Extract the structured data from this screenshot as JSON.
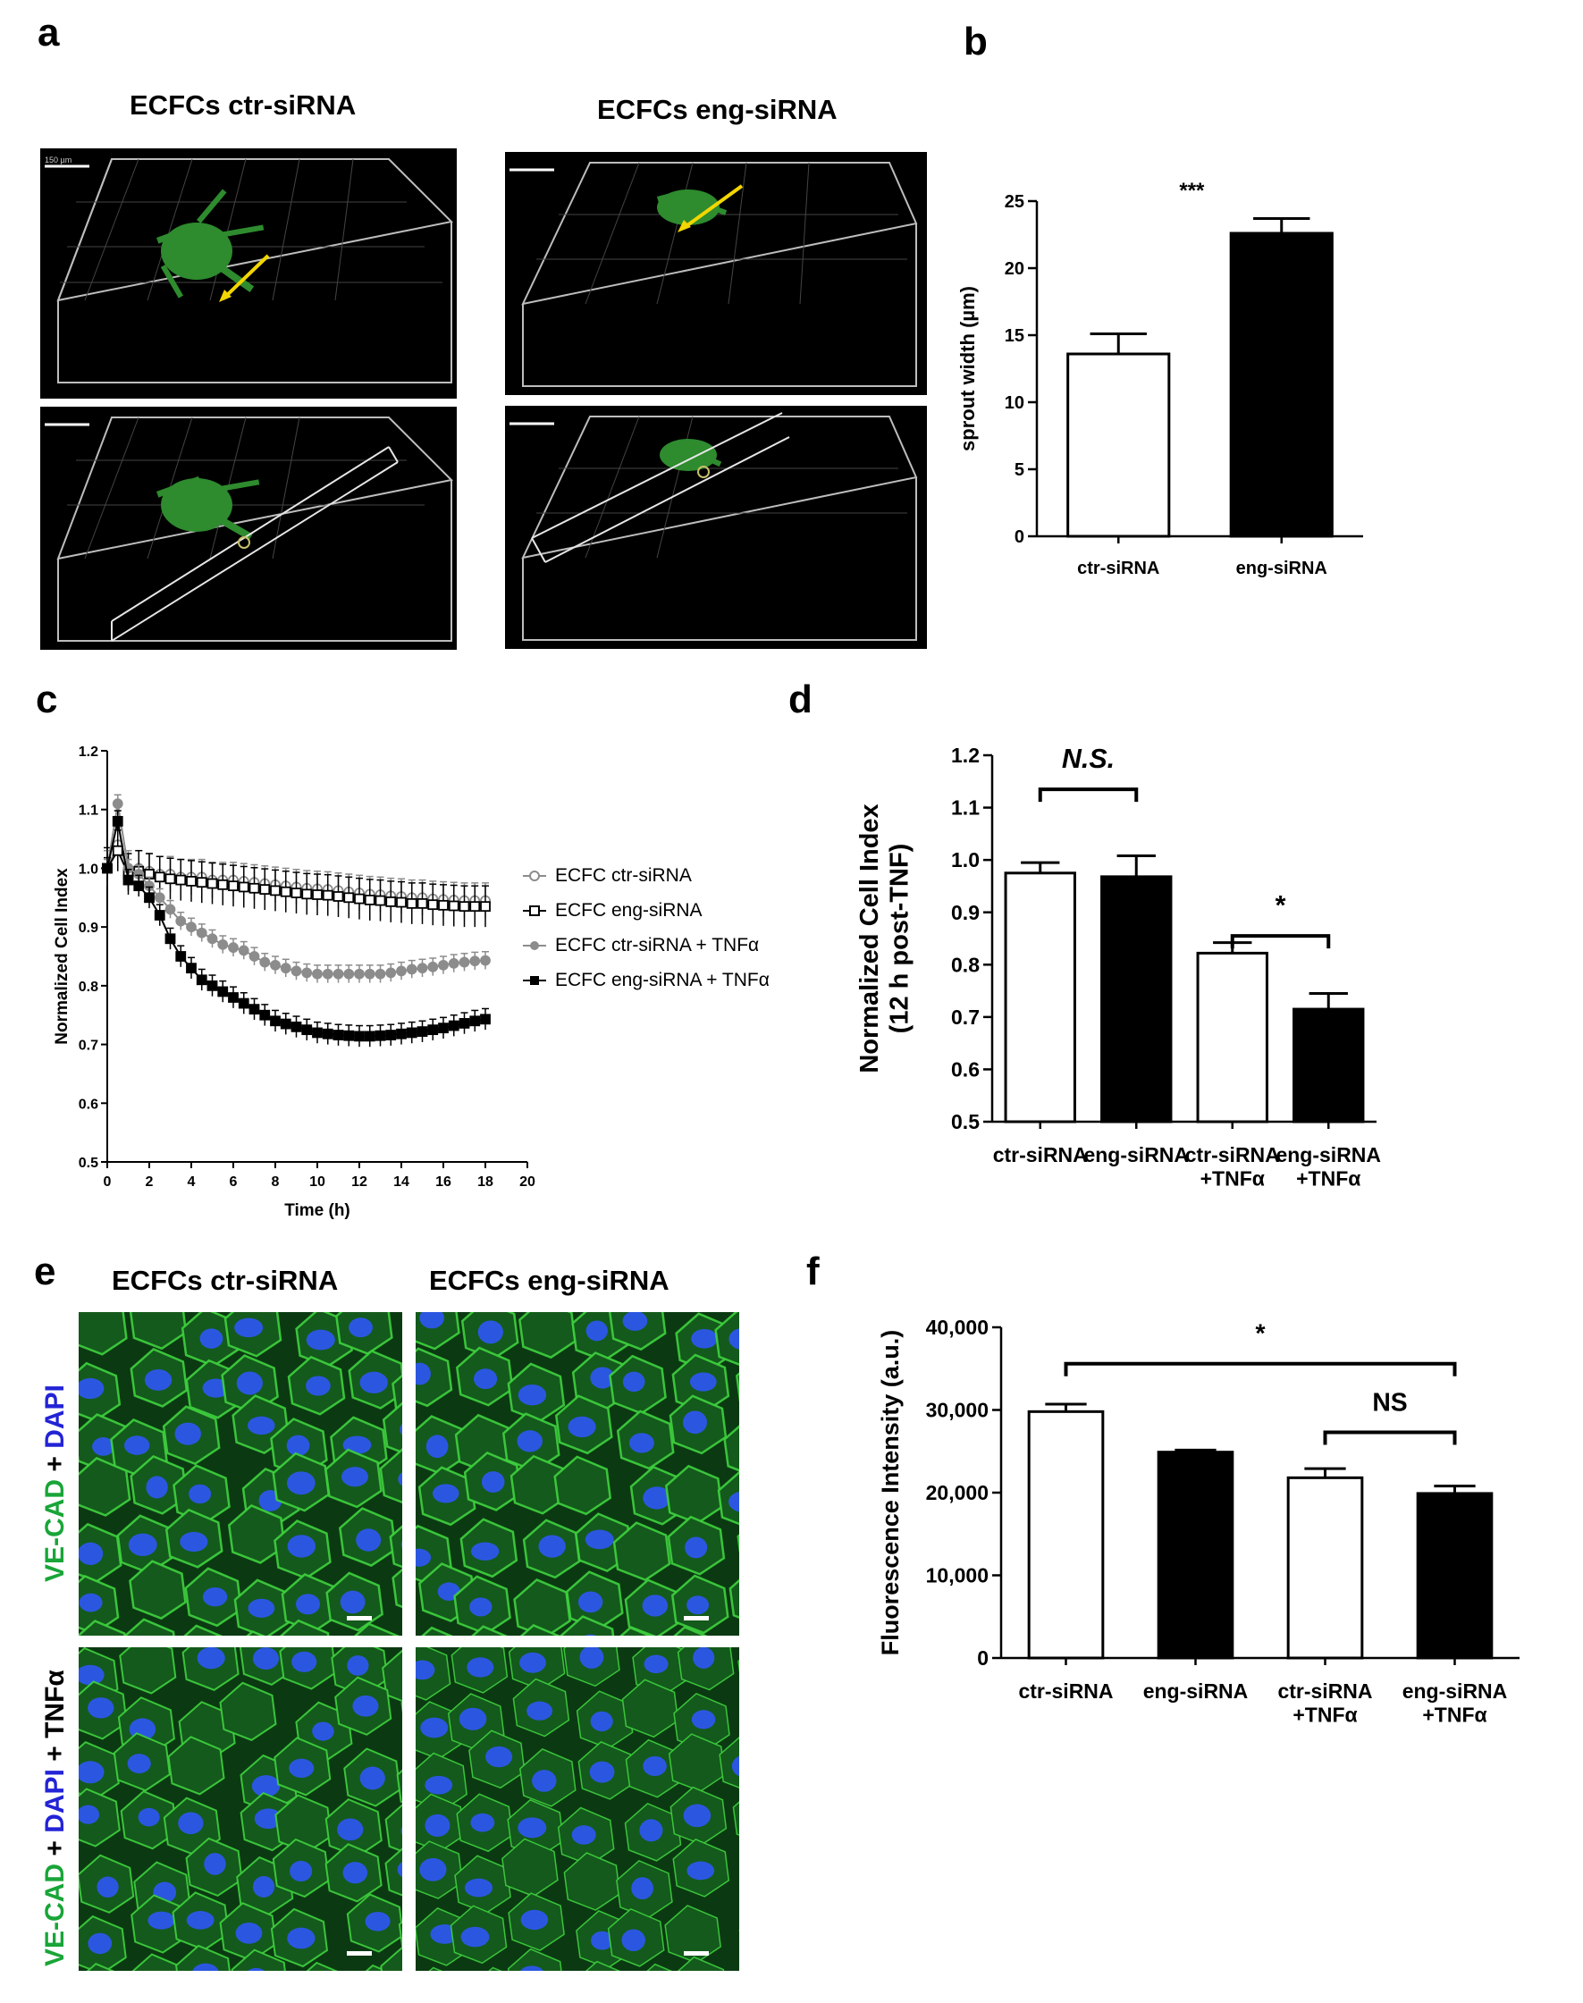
{
  "panels": [
    "a",
    "b",
    "c",
    "d",
    "e",
    "f"
  ],
  "panel_a": {
    "titles": [
      "ECFCs ctr-siRNA",
      "ECFCs eng-siRNA"
    ],
    "scale_bar": "150 µm"
  },
  "panel_e": {
    "titles": [
      "ECFCs ctr-siRNA",
      "ECFCs eng-siRNA"
    ],
    "row_labels": [
      {
        "parts": [
          "VE-CAD",
          " + ",
          "DAPI"
        ]
      },
      {
        "parts": [
          "VE-CAD",
          " + ",
          "DAPI",
          " + TNFα"
        ]
      }
    ],
    "stain_colors": {
      "ve_cad": "#19a538",
      "dapi": "#2323d6"
    }
  },
  "chart_data": [
    {
      "id": "b",
      "type": "bar",
      "categories": [
        "ctr-siRNA",
        "eng-siRNA"
      ],
      "values": [
        13.6,
        22.6
      ],
      "errors": [
        1.5,
        1.1
      ],
      "fills": [
        "#ffffff",
        "#000000"
      ],
      "ylabel": "sprout width (µm)",
      "ylim": [
        0,
        25
      ],
      "yticks": [
        0,
        5,
        10,
        15,
        20,
        25
      ],
      "annotations": [
        {
          "text": "***",
          "over": 1
        }
      ]
    },
    {
      "id": "c",
      "type": "line",
      "xlabel": "Time (h)",
      "ylabel": "Normalized Cell Index",
      "xlim": [
        0,
        20
      ],
      "ylim": [
        0.5,
        1.2
      ],
      "xticks": [
        0,
        2,
        4,
        6,
        8,
        10,
        12,
        14,
        16,
        18,
        20
      ],
      "yticks": [
        0.5,
        0.6,
        0.7,
        0.8,
        0.9,
        1.0,
        1.1,
        1.2
      ],
      "ytick_labels": [
        "0.5",
        "0.6",
        "0.7",
        "0.8",
        "0.9",
        "1.0",
        "1.1",
        "1.2"
      ],
      "x": [
        0,
        0.5,
        1,
        1.5,
        2,
        2.5,
        3,
        3.5,
        4,
        4.5,
        5,
        5.5,
        6,
        6.5,
        7,
        7.5,
        8,
        8.5,
        9,
        9.5,
        10,
        10.5,
        11,
        11.5,
        12,
        12.5,
        13,
        13.5,
        14,
        14.5,
        15,
        15.5,
        16,
        16.5,
        17,
        17.5,
        18
      ],
      "legend_position": "right",
      "series": [
        {
          "name": "ECFC ctr-siRNA",
          "color": "#8c8c8c",
          "marker": "circle-open",
          "values": [
            1.0,
            1.04,
            1.0,
            1.0,
            0.995,
            0.99,
            0.99,
            0.985,
            0.985,
            0.985,
            0.98,
            0.98,
            0.98,
            0.978,
            0.976,
            0.974,
            0.972,
            0.97,
            0.968,
            0.966,
            0.965,
            0.964,
            0.962,
            0.96,
            0.958,
            0.956,
            0.955,
            0.953,
            0.952,
            0.95,
            0.95,
            0.948,
            0.947,
            0.946,
            0.945,
            0.945,
            0.945
          ],
          "error": 0.03
        },
        {
          "name": "ECFC eng-siRNA",
          "color": "#000000",
          "marker": "square-open",
          "values": [
            1.0,
            1.03,
            0.99,
            0.995,
            0.99,
            0.985,
            0.982,
            0.98,
            0.978,
            0.976,
            0.974,
            0.972,
            0.97,
            0.968,
            0.966,
            0.964,
            0.962,
            0.96,
            0.958,
            0.956,
            0.955,
            0.954,
            0.952,
            0.95,
            0.948,
            0.946,
            0.945,
            0.943,
            0.942,
            0.94,
            0.94,
            0.938,
            0.937,
            0.936,
            0.935,
            0.935,
            0.935
          ],
          "error": 0.035
        },
        {
          "name": "ECFC ctr-siRNA + TNFα",
          "color": "#8c8c8c",
          "marker": "circle-filled",
          "values": [
            1.0,
            1.11,
            1.0,
            0.99,
            0.97,
            0.95,
            0.93,
            0.91,
            0.9,
            0.89,
            0.88,
            0.87,
            0.865,
            0.86,
            0.85,
            0.84,
            0.835,
            0.83,
            0.825,
            0.822,
            0.82,
            0.82,
            0.82,
            0.82,
            0.82,
            0.82,
            0.82,
            0.822,
            0.825,
            0.828,
            0.83,
            0.832,
            0.835,
            0.838,
            0.84,
            0.842,
            0.843
          ],
          "error": 0.015
        },
        {
          "name": "ECFC eng-siRNA + TNFα",
          "color": "#000000",
          "marker": "square-filled",
          "values": [
            1.0,
            1.08,
            0.98,
            0.97,
            0.95,
            0.92,
            0.88,
            0.85,
            0.83,
            0.81,
            0.8,
            0.79,
            0.78,
            0.77,
            0.76,
            0.75,
            0.74,
            0.735,
            0.73,
            0.725,
            0.72,
            0.718,
            0.716,
            0.715,
            0.714,
            0.714,
            0.715,
            0.716,
            0.718,
            0.72,
            0.722,
            0.725,
            0.728,
            0.732,
            0.736,
            0.74,
            0.743
          ],
          "error": 0.018
        }
      ]
    },
    {
      "id": "d",
      "type": "bar",
      "categories": [
        "ctr-siRNA",
        "eng-siRNA",
        "ctr-siRNA\n+TNFα",
        "eng-siRNA\n+TNFα"
      ],
      "values": [
        0.975,
        0.968,
        0.822,
        0.715
      ],
      "errors": [
        0.02,
        0.04,
        0.02,
        0.03
      ],
      "fills": [
        "#ffffff",
        "#000000",
        "#ffffff",
        "#000000"
      ],
      "ylabel": "Normalized Cell Index\n(12 h post-TNF)",
      "ylim": [
        0.5,
        1.2
      ],
      "yticks": [
        0.5,
        0.6,
        0.7,
        0.8,
        0.9,
        1.0,
        1.1,
        1.2
      ],
      "ytick_labels": [
        "0.5",
        "0.6",
        "0.7",
        "0.8",
        "0.9",
        "1.0",
        "1.1",
        "1.2"
      ],
      "brackets": [
        {
          "from": 0,
          "to": 1,
          "text": "N.S.",
          "italic": true,
          "level": 1.135
        },
        {
          "from": 2,
          "to": 3,
          "text": "*",
          "italic": false,
          "level": 0.855
        }
      ]
    },
    {
      "id": "f",
      "type": "bar",
      "categories": [
        "ctr-siRNA",
        "eng-siRNA",
        "ctr-siRNA\n+TNFα",
        "eng-siRNA\n+TNFα"
      ],
      "values": [
        29800,
        24900,
        21800,
        19900
      ],
      "errors": [
        900,
        250,
        1100,
        900
      ],
      "fills": [
        "#ffffff",
        "#000000",
        "#ffffff",
        "#000000"
      ],
      "ylabel": "Fluorescence Intensity (a.u.)",
      "ylim": [
        0,
        40000
      ],
      "yticks": [
        0,
        10000,
        20000,
        30000,
        40000
      ],
      "ytick_labels": [
        "0",
        "10,000",
        "20,000",
        "30,000",
        "40,000"
      ],
      "brackets": [
        {
          "from": 0,
          "to": 3,
          "text": "*",
          "italic": false,
          "level": 35600
        },
        {
          "from": 2,
          "to": 3,
          "text": "NS",
          "italic": false,
          "level": 27300
        }
      ]
    }
  ]
}
